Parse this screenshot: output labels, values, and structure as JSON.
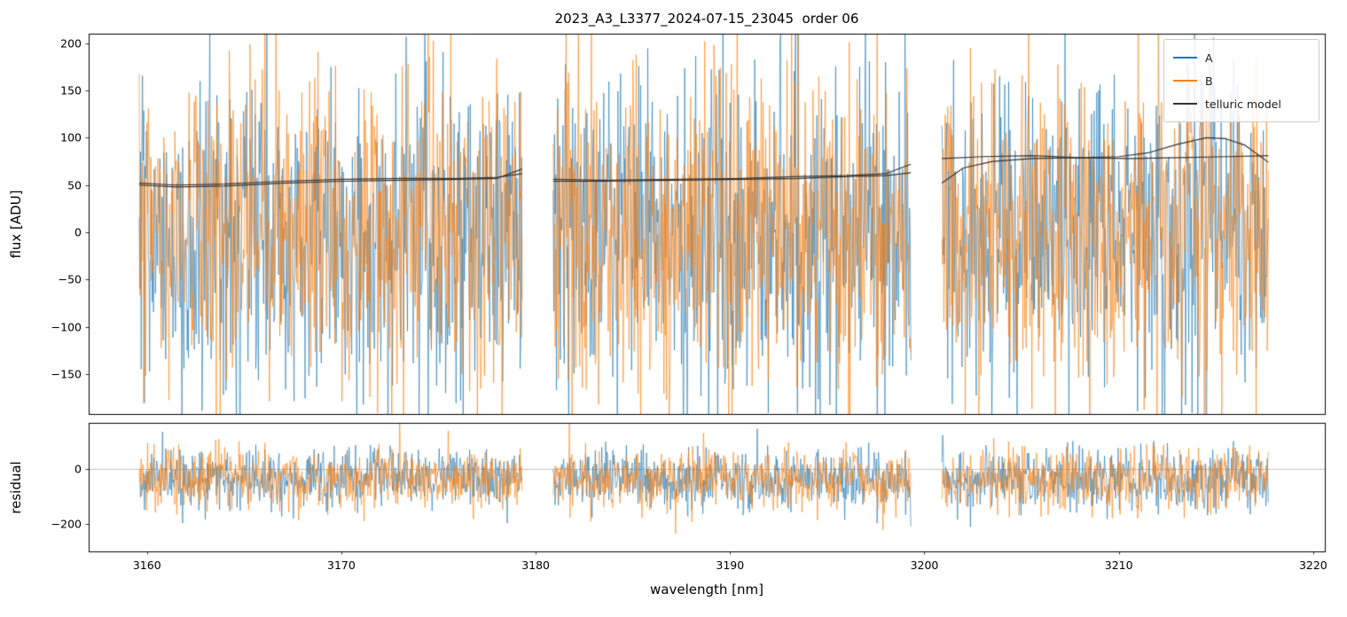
{
  "title": "2023_A3_L3377_2024-07-15_23045  order 06",
  "labels": {
    "xlabel": "wavelength [nm]",
    "flux_ylabel": "flux [ADU]",
    "residual_ylabel": "residual"
  },
  "chart_data": {
    "type": "line",
    "title": "2023_A3_L3377_2024-07-15_23045  order 06",
    "xlabel": "wavelength [nm]",
    "xlim": [
      3157.0,
      3220.6
    ],
    "xticks": [
      3160,
      3170,
      3180,
      3190,
      3200,
      3210,
      3220
    ],
    "grid": false,
    "legend_position": "upper right",
    "segments": [
      [
        3159.6,
        3179.3
      ],
      [
        3180.9,
        3199.3
      ],
      [
        3200.9,
        3217.7
      ]
    ],
    "panels": {
      "flux": {
        "ylabel": "flux [ADU]",
        "ylim": [
          -192,
          210
        ],
        "yticks": [
          -150,
          -100,
          -50,
          0,
          50,
          100,
          150,
          200
        ],
        "noise_mean": 0,
        "noise_sigma": 85,
        "points_per_nm": 30
      },
      "residual": {
        "ylabel": "residual",
        "ylim": [
          -300,
          170
        ],
        "yticks": [
          -200,
          0
        ],
        "noise_mean": -35,
        "noise_sigma": 55,
        "points_per_nm": 30,
        "zero_line": true,
        "zero_line_color": "#b0b0b0"
      }
    },
    "series": [
      {
        "name": "A",
        "color": "#1f77b4",
        "seed": 101
      },
      {
        "name": "B",
        "color": "#ff7f0e",
        "seed": 202
      }
    ],
    "telluric": {
      "name": "telluric model",
      "color": "#333333",
      "lines": [
        {
          "segments": [
            [
              [
                3159.6,
                52
              ],
              [
                3161.5,
                50
              ],
              [
                3164,
                51
              ],
              [
                3167,
                54
              ],
              [
                3170,
                56
              ],
              [
                3173,
                57
              ],
              [
                3176,
                57
              ],
              [
                3178,
                58
              ],
              [
                3179.3,
                62
              ]
            ],
            [
              [
                3180.9,
                56
              ],
              [
                3183.5,
                55
              ],
              [
                3187,
                56
              ],
              [
                3190.5,
                57
              ],
              [
                3193.5,
                59
              ],
              [
                3196,
                60
              ],
              [
                3198,
                62
              ],
              [
                3199.3,
                72
              ]
            ],
            [
              [
                3200.9,
                78
              ],
              [
                3203,
                80
              ],
              [
                3205.5,
                81
              ],
              [
                3208,
                79
              ],
              [
                3210,
                80
              ],
              [
                3211.5,
                84
              ],
              [
                3213,
                93
              ],
              [
                3214.5,
                100
              ],
              [
                3215.5,
                99
              ],
              [
                3216.5,
                92
              ],
              [
                3217.7,
                74
              ]
            ]
          ]
        },
        {
          "segments": [
            [
              [
                3159.6,
                50
              ],
              [
                3161.5,
                48
              ],
              [
                3164,
                49
              ],
              [
                3167,
                52
              ],
              [
                3170,
                54
              ],
              [
                3173,
                55
              ],
              [
                3176,
                56
              ],
              [
                3178,
                57
              ],
              [
                3179.3,
                67
              ]
            ],
            [
              [
                3180.9,
                54
              ],
              [
                3183.5,
                54
              ],
              [
                3187,
                55
              ],
              [
                3190.5,
                56
              ],
              [
                3193.5,
                57
              ],
              [
                3196,
                59
              ],
              [
                3198,
                60
              ],
              [
                3199.3,
                63
              ]
            ],
            [
              [
                3200.9,
                52
              ],
              [
                3202,
                68
              ],
              [
                3203.5,
                75
              ],
              [
                3205.5,
                78
              ],
              [
                3208,
                79
              ],
              [
                3210.5,
                78
              ],
              [
                3213,
                79
              ],
              [
                3215.5,
                80
              ],
              [
                3217.7,
                81
              ]
            ]
          ]
        }
      ]
    },
    "legend": {
      "entries": [
        "A",
        "B",
        "telluric model"
      ]
    }
  }
}
